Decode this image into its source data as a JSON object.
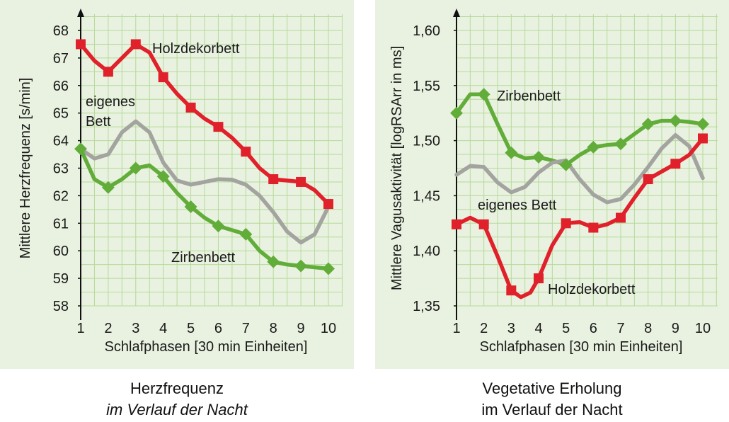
{
  "colors": {
    "holz": "#e0202a",
    "eigenes": "#a3a3a0",
    "zirben": "#62ad3a",
    "grid": "#b5da99",
    "panel_bg": "#e9f2e0"
  },
  "captions": {
    "left_line1": "Herzfrequenz",
    "left_line2": "im Verlauf der Nacht",
    "right_line1": "Vegetative Erholung",
    "right_line2": "im Verlauf der Nacht"
  },
  "chart_data": [
    {
      "type": "line",
      "title": "Herzfrequenz im Verlauf der Nacht",
      "xlabel": "Schlafphasen [30 min Einheiten]",
      "ylabel": "Mittlere Herzfrequenz [s/min]",
      "x": [
        1,
        2,
        3,
        4,
        5,
        6,
        7,
        8,
        9,
        10
      ],
      "xlim": [
        1,
        10
      ],
      "ylim": [
        58,
        68
      ],
      "yticks": [
        "58",
        "59",
        "60",
        "61",
        "62",
        "63",
        "64",
        "65",
        "66",
        "67",
        "68"
      ],
      "xticks": [
        "1",
        "2",
        "3",
        "4",
        "5",
        "6",
        "7",
        "8",
        "9",
        "10"
      ],
      "grid": true,
      "series": [
        {
          "name": "Holzdekorbett",
          "color_key": "holz",
          "marker": "square",
          "markers": true,
          "values": [
            67.5,
            66.5,
            67.5,
            66.3,
            65.2,
            64.5,
            63.6,
            62.6,
            62.5,
            61.7
          ],
          "curve": [
            [
              1,
              67.5
            ],
            [
              1.5,
              66.9
            ],
            [
              2,
              66.5
            ],
            [
              2.5,
              67.0
            ],
            [
              3,
              67.5
            ],
            [
              3.5,
              67.2
            ],
            [
              4,
              66.3
            ],
            [
              4.5,
              65.7
            ],
            [
              5,
              65.2
            ],
            [
              5.5,
              64.8
            ],
            [
              6,
              64.5
            ],
            [
              6.5,
              64.1
            ],
            [
              7,
              63.6
            ],
            [
              7.5,
              63.0
            ],
            [
              8,
              62.6
            ],
            [
              8.5,
              62.55
            ],
            [
              9,
              62.5
            ],
            [
              9.5,
              62.2
            ],
            [
              10,
              61.7
            ]
          ]
        },
        {
          "name": "eigenes Bett",
          "label_lines": [
            "eigenes",
            "Bett"
          ],
          "color_key": "eigenes",
          "marker": "none",
          "markers": false,
          "values": [
            63.7,
            63.5,
            64.7,
            63.2,
            62.4,
            62.6,
            62.4,
            61.4,
            60.3,
            61.6
          ],
          "curve": [
            [
              1,
              63.7
            ],
            [
              1.5,
              63.35
            ],
            [
              2,
              63.5
            ],
            [
              2.5,
              64.3
            ],
            [
              3,
              64.7
            ],
            [
              3.5,
              64.3
            ],
            [
              4,
              63.2
            ],
            [
              4.5,
              62.55
            ],
            [
              5,
              62.4
            ],
            [
              5.5,
              62.5
            ],
            [
              6,
              62.6
            ],
            [
              6.5,
              62.58
            ],
            [
              7,
              62.4
            ],
            [
              7.5,
              62.0
            ],
            [
              8,
              61.4
            ],
            [
              8.5,
              60.7
            ],
            [
              9,
              60.3
            ],
            [
              9.5,
              60.6
            ],
            [
              10,
              61.6
            ]
          ]
        },
        {
          "name": "Zirbenbett",
          "color_key": "zirben",
          "marker": "diamond",
          "markers": true,
          "values": [
            63.7,
            62.3,
            63.0,
            62.7,
            61.6,
            60.9,
            60.6,
            59.6,
            59.45,
            59.35
          ],
          "curve": [
            [
              1,
              63.7
            ],
            [
              1.5,
              62.6
            ],
            [
              2,
              62.3
            ],
            [
              2.5,
              62.6
            ],
            [
              3,
              63.0
            ],
            [
              3.5,
              63.1
            ],
            [
              4,
              62.7
            ],
            [
              4.5,
              62.1
            ],
            [
              5,
              61.6
            ],
            [
              5.5,
              61.2
            ],
            [
              6,
              60.9
            ],
            [
              6.5,
              60.75
            ],
            [
              7,
              60.6
            ],
            [
              7.5,
              60.0
            ],
            [
              8,
              59.6
            ],
            [
              8.5,
              59.5
            ],
            [
              9,
              59.45
            ],
            [
              9.5,
              59.4
            ],
            [
              10,
              59.35
            ]
          ]
        }
      ],
      "annotations": [
        "Holzdekorbett",
        "eigenes",
        "Bett",
        "Zirbenbett"
      ]
    },
    {
      "type": "line",
      "title": "Vegetative Erholung im Verlauf der Nacht",
      "xlabel": "Schlafphasen [30 min Einheiten]",
      "ylabel": "Mittlere Vagusaktivität [logRSArr in ms]",
      "x": [
        1,
        2,
        3,
        4,
        5,
        6,
        7,
        8,
        9,
        10
      ],
      "xlim": [
        1,
        10
      ],
      "ylim": [
        1.35,
        1.6
      ],
      "yticks": [
        "1,35",
        "1,40",
        "1,45",
        "1,50",
        "1,55",
        "1,60"
      ],
      "xticks": [
        "1",
        "2",
        "3",
        "4",
        "5",
        "6",
        "7",
        "8",
        "9",
        "10"
      ],
      "grid": true,
      "series": [
        {
          "name": "Zirbenbett",
          "color_key": "zirben",
          "marker": "diamond",
          "markers": true,
          "values": [
            1.525,
            1.542,
            1.489,
            1.485,
            1.478,
            1.494,
            1.497,
            1.515,
            1.518,
            1.515
          ],
          "curve": [
            [
              1,
              1.525
            ],
            [
              1.5,
              1.542
            ],
            [
              2,
              1.542
            ],
            [
              2.5,
              1.515
            ],
            [
              3,
              1.489
            ],
            [
              3.5,
              1.484
            ],
            [
              4,
              1.485
            ],
            [
              4.5,
              1.482
            ],
            [
              5,
              1.478
            ],
            [
              5.5,
              1.487
            ],
            [
              6,
              1.494
            ],
            [
              6.5,
              1.496
            ],
            [
              7,
              1.497
            ],
            [
              7.5,
              1.506
            ],
            [
              8,
              1.515
            ],
            [
              8.5,
              1.518
            ],
            [
              9,
              1.518
            ],
            [
              9.5,
              1.517
            ],
            [
              10,
              1.515
            ]
          ]
        },
        {
          "name": "eigenes Bett",
          "color_key": "eigenes",
          "marker": "none",
          "markers": false,
          "values": [
            1.469,
            1.476,
            1.453,
            1.471,
            1.482,
            1.451,
            1.447,
            1.476,
            1.505,
            1.466
          ],
          "curve": [
            [
              1,
              1.469
            ],
            [
              1.5,
              1.477
            ],
            [
              2,
              1.476
            ],
            [
              2.5,
              1.462
            ],
            [
              3,
              1.453
            ],
            [
              3.5,
              1.458
            ],
            [
              4,
              1.471
            ],
            [
              4.5,
              1.48
            ],
            [
              5,
              1.482
            ],
            [
              5.5,
              1.465
            ],
            [
              6,
              1.451
            ],
            [
              6.5,
              1.444
            ],
            [
              7,
              1.447
            ],
            [
              7.5,
              1.46
            ],
            [
              8,
              1.476
            ],
            [
              8.5,
              1.493
            ],
            [
              9,
              1.505
            ],
            [
              9.5,
              1.495
            ],
            [
              10,
              1.466
            ]
          ]
        },
        {
          "name": "Holzdekorbett",
          "color_key": "holz",
          "marker": "square",
          "markers": true,
          "values": [
            1.424,
            1.424,
            1.364,
            1.375,
            1.425,
            1.421,
            1.43,
            1.465,
            1.479,
            1.502
          ],
          "curve": [
            [
              1,
              1.424
            ],
            [
              1.5,
              1.43
            ],
            [
              2,
              1.424
            ],
            [
              2.5,
              1.395
            ],
            [
              3,
              1.364
            ],
            [
              3.35,
              1.358
            ],
            [
              3.7,
              1.362
            ],
            [
              4,
              1.375
            ],
            [
              4.5,
              1.405
            ],
            [
              5,
              1.425
            ],
            [
              5.5,
              1.426
            ],
            [
              6,
              1.421
            ],
            [
              6.5,
              1.424
            ],
            [
              7,
              1.43
            ],
            [
              7.5,
              1.448
            ],
            [
              8,
              1.465
            ],
            [
              8.5,
              1.472
            ],
            [
              9,
              1.479
            ],
            [
              9.5,
              1.487
            ],
            [
              10,
              1.502
            ]
          ]
        }
      ],
      "annotations": [
        "Zirbenbett",
        "eigenes Bett",
        "Holzdekorbett"
      ]
    }
  ]
}
